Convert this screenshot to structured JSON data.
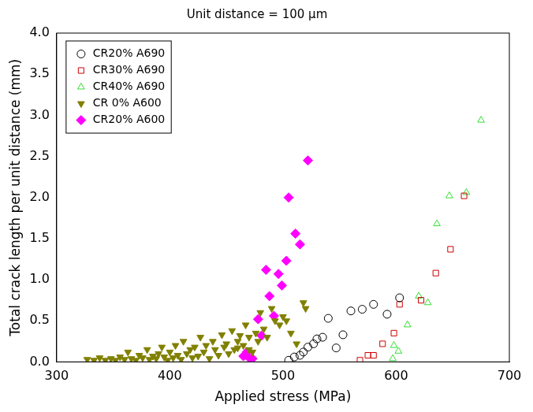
{
  "chart_data": {
    "type": "scatter",
    "title": "Unit distance = 100 μm",
    "x_label": "Applied stress (MPa)",
    "y_label": "Total crack length per unit distance (mm)",
    "xlim": [
      300,
      700
    ],
    "xticks": [
      300,
      400,
      500,
      600,
      700
    ],
    "ylim": [
      0,
      4
    ],
    "yticks": [
      {
        "value": 0,
        "label": "0.0"
      },
      {
        "value": 0.5,
        "label": "0.5"
      },
      {
        "value": 1,
        "label": "1.0"
      },
      {
        "value": 1.5,
        "label": "1.5"
      },
      {
        "value": 2,
        "label": "2.0"
      },
      {
        "value": 2.5,
        "label": "2.5"
      },
      {
        "value": 3,
        "label": "3.0"
      },
      {
        "value": 3.5,
        "label": "3.5"
      },
      {
        "value": 4,
        "label": "4.0"
      }
    ],
    "grid": false,
    "legend": "upper left",
    "series": [
      {
        "name": "CR20% A690",
        "color": "#000000",
        "marker": "circle-open",
        "x": [
          505,
          510,
          515,
          518,
          522,
          527,
          530,
          535,
          540,
          547,
          553,
          560,
          570,
          580,
          592,
          603
        ],
        "values": [
          0.02,
          0.06,
          0.08,
          0.12,
          0.18,
          0.22,
          0.28,
          0.3,
          0.53,
          0.17,
          0.33,
          0.62,
          0.64,
          0.7,
          0.58,
          0.78
        ]
      },
      {
        "name": "CR30% A690",
        "color": "#cc0000",
        "marker": "square-open",
        "x": [
          568,
          575,
          580,
          588,
          598,
          603,
          622,
          635,
          648,
          660
        ],
        "values": [
          0.02,
          0.08,
          0.08,
          0.22,
          0.35,
          0.7,
          0.75,
          1.08,
          1.37,
          2.02
        ]
      },
      {
        "name": "CR40% A690",
        "color": "#33dd33",
        "marker": "triangle-open",
        "x": [
          597,
          598,
          602,
          610,
          620,
          628,
          636,
          647,
          662,
          675
        ],
        "values": [
          0.04,
          0.2,
          0.13,
          0.45,
          0.8,
          0.72,
          1.68,
          2.02,
          2.06,
          2.94
        ]
      },
      {
        "name": "CR 0% A600",
        "color": "#808000",
        "marker": "triangle-down",
        "x": [
          327,
          333,
          338,
          343,
          348,
          352,
          356,
          360,
          363,
          366,
          370,
          373,
          376,
          380,
          382,
          385,
          388,
          390,
          393,
          395,
          398,
          400,
          403,
          405,
          407,
          410,
          412,
          415,
          418,
          420,
          422,
          425,
          427,
          430,
          432,
          435,
          438,
          440,
          443,
          446,
          448,
          450,
          452,
          455,
          457,
          460,
          460,
          462,
          465,
          467,
          470,
          470,
          473,
          476,
          478,
          480,
          483,
          486,
          490,
          493,
          497,
          500,
          503,
          507,
          512,
          518,
          520
        ],
        "values": [
          0.03,
          0.02,
          0.05,
          0.02,
          0.04,
          0.02,
          0.06,
          0.03,
          0.12,
          0.04,
          0.02,
          0.08,
          0.05,
          0.15,
          0.03,
          0.07,
          0.04,
          0.1,
          0.18,
          0.06,
          0.02,
          0.12,
          0.05,
          0.2,
          0.08,
          0.03,
          0.25,
          0.1,
          0.15,
          0.05,
          0.18,
          0.07,
          0.3,
          0.12,
          0.2,
          0.04,
          0.25,
          0.15,
          0.08,
          0.33,
          0.18,
          0.22,
          0.1,
          0.38,
          0.15,
          0.25,
          0.17,
          0.32,
          0.2,
          0.45,
          0.3,
          0.15,
          0.12,
          0.35,
          0.25,
          0.6,
          0.4,
          0.3,
          0.65,
          0.5,
          0.45,
          0.55,
          0.5,
          0.35,
          0.22,
          0.72,
          0.65
        ]
      },
      {
        "name": "CR20% A600",
        "color": "#ff00ff",
        "marker": "diamond",
        "x": [
          465,
          468,
          470,
          473,
          478,
          481,
          485,
          488,
          492,
          496,
          499,
          503,
          505,
          511,
          515,
          522
        ],
        "values": [
          0.07,
          0.12,
          0.05,
          0.04,
          0.52,
          0.32,
          1.12,
          0.8,
          0.56,
          1.07,
          0.93,
          1.23,
          2.0,
          1.56,
          1.43,
          2.45
        ]
      }
    ]
  }
}
